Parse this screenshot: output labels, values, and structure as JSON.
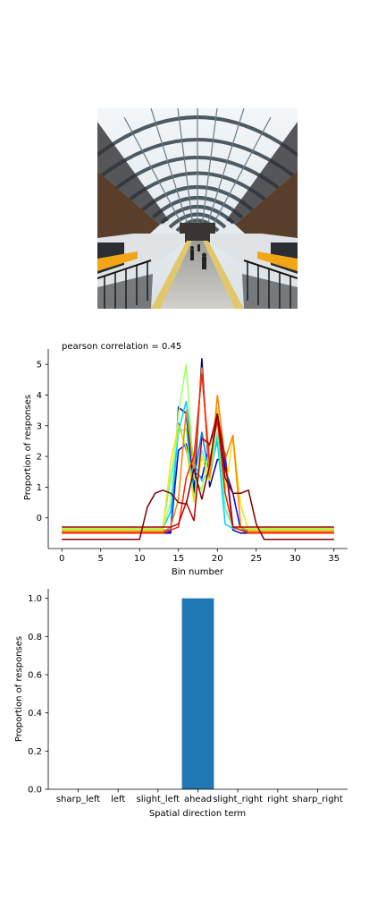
{
  "icons": {
    "photo": "train-station-platform-photo"
  },
  "chart_data": [
    {
      "type": "line",
      "title": "pearson correlation = 0.45",
      "xlabel": "Bin number",
      "ylabel": "Proportion of responses",
      "xlim": [
        -1.75,
        36.75
      ],
      "ylim": [
        -1.0,
        5.5
      ],
      "xticks": [
        "0",
        "5",
        "10",
        "15",
        "20",
        "25",
        "30",
        "35"
      ],
      "yticks": [
        "0",
        "1",
        "2",
        "3",
        "4",
        "5"
      ],
      "x": [
        0,
        1,
        2,
        3,
        4,
        5,
        6,
        7,
        8,
        9,
        10,
        11,
        12,
        13,
        14,
        15,
        16,
        17,
        18,
        19,
        20,
        21,
        22,
        23,
        24,
        25,
        26,
        27,
        28,
        29,
        30,
        31,
        32,
        33,
        34,
        35
      ],
      "series": [
        {
          "color": "#00008b",
          "values": [
            -0.5,
            -0.5,
            -0.5,
            -0.5,
            -0.5,
            -0.5,
            -0.5,
            -0.5,
            -0.5,
            -0.5,
            -0.5,
            -0.5,
            -0.5,
            -0.5,
            -0.5,
            3.6,
            3.4,
            0.8,
            5.2,
            1.0,
            1.9,
            1.9,
            -0.4,
            -0.5,
            -0.5,
            -0.5,
            -0.5,
            -0.5,
            -0.5,
            -0.5,
            -0.5,
            -0.5,
            -0.5,
            -0.5,
            -0.5,
            -0.5
          ]
        },
        {
          "color": "#0000ff",
          "values": [
            -0.45,
            -0.45,
            -0.45,
            -0.45,
            -0.45,
            -0.45,
            -0.45,
            -0.45,
            -0.45,
            -0.45,
            -0.45,
            -0.45,
            -0.45,
            -0.45,
            -0.45,
            2.2,
            2.4,
            1.5,
            1.3,
            2.4,
            3.1,
            1.6,
            0.8,
            -0.4,
            -0.45,
            -0.45,
            -0.45,
            -0.45,
            -0.45,
            -0.45,
            -0.45,
            -0.45,
            -0.45,
            -0.45,
            -0.45,
            -0.45
          ]
        },
        {
          "color": "#0080ff",
          "values": [
            -0.4,
            -0.4,
            -0.4,
            -0.4,
            -0.4,
            -0.4,
            -0.4,
            -0.4,
            -0.4,
            -0.4,
            -0.4,
            -0.4,
            -0.4,
            -0.4,
            -0.4,
            3.1,
            2.2,
            1.2,
            2.8,
            1.3,
            2.7,
            2.1,
            -0.3,
            -0.4,
            -0.4,
            -0.4,
            -0.4,
            -0.4,
            -0.4,
            -0.4,
            -0.4,
            -0.4,
            -0.4,
            -0.4,
            -0.4,
            -0.4
          ]
        },
        {
          "color": "#00d0ff",
          "values": [
            -0.35,
            -0.35,
            -0.35,
            -0.35,
            -0.35,
            -0.35,
            -0.35,
            -0.35,
            -0.35,
            -0.35,
            -0.35,
            -0.35,
            -0.35,
            -0.35,
            0.2,
            2.8,
            3.8,
            1.8,
            1.2,
            1.5,
            2.5,
            -0.2,
            -0.35,
            -0.35,
            -0.35,
            -0.35,
            -0.35,
            -0.35,
            -0.35,
            -0.35,
            -0.35,
            -0.35,
            -0.35,
            -0.35,
            -0.35,
            -0.35
          ]
        },
        {
          "color": "#40ffc0",
          "values": [
            -0.3,
            -0.3,
            -0.3,
            -0.3,
            -0.3,
            -0.3,
            -0.3,
            -0.3,
            -0.3,
            -0.3,
            -0.3,
            -0.3,
            -0.3,
            -0.3,
            1.3,
            2.8,
            2.9,
            0.6,
            2.2,
            1.4,
            2.8,
            0.3,
            -0.3,
            -0.3,
            -0.3,
            -0.3,
            -0.3,
            -0.3,
            -0.3,
            -0.3,
            -0.3,
            -0.3,
            -0.3,
            -0.3,
            -0.3,
            -0.3
          ]
        },
        {
          "color": "#a0ff60",
          "values": [
            -0.35,
            -0.35,
            -0.35,
            -0.35,
            -0.35,
            -0.35,
            -0.35,
            -0.35,
            -0.35,
            -0.35,
            -0.35,
            -0.35,
            -0.35,
            -0.35,
            0.5,
            3.4,
            5.0,
            1.3,
            0.9,
            2.3,
            3.0,
            0.8,
            -0.3,
            -0.35,
            -0.35,
            -0.35,
            -0.35,
            -0.35,
            -0.35,
            -0.35,
            -0.35,
            -0.35,
            -0.35,
            -0.35,
            -0.35,
            -0.35
          ]
        },
        {
          "color": "#ffe000",
          "values": [
            -0.4,
            -0.4,
            -0.4,
            -0.4,
            -0.4,
            -0.4,
            -0.4,
            -0.4,
            -0.4,
            -0.4,
            -0.4,
            -0.4,
            -0.4,
            -0.4,
            1.8,
            3.0,
            2.3,
            0.5,
            2.0,
            1.2,
            3.6,
            0.9,
            2.6,
            0.4,
            -0.4,
            -0.4,
            -0.4,
            -0.4,
            -0.4,
            -0.4,
            -0.4,
            -0.4,
            -0.4,
            -0.4,
            -0.4,
            -0.4
          ]
        },
        {
          "color": "#ff8000",
          "values": [
            -0.45,
            -0.45,
            -0.45,
            -0.45,
            -0.45,
            -0.45,
            -0.45,
            -0.45,
            -0.45,
            -0.45,
            -0.45,
            -0.45,
            -0.45,
            -0.45,
            -0.3,
            0.6,
            3.5,
            1.5,
            4.9,
            1.3,
            4.0,
            1.9,
            2.7,
            -0.3,
            -0.45,
            -0.45,
            -0.45,
            -0.45,
            -0.45,
            -0.45,
            -0.45,
            -0.45,
            -0.45,
            -0.45,
            -0.45,
            -0.45
          ]
        },
        {
          "color": "#ff2000",
          "values": [
            -0.5,
            -0.5,
            -0.5,
            -0.5,
            -0.5,
            -0.5,
            -0.5,
            -0.5,
            -0.5,
            -0.5,
            -0.5,
            -0.5,
            -0.5,
            -0.5,
            -0.4,
            -0.3,
            1.3,
            2.0,
            4.7,
            1.8,
            3.2,
            0.8,
            -0.3,
            -0.4,
            -0.5,
            -0.5,
            -0.5,
            -0.5,
            -0.5,
            -0.5,
            -0.5,
            -0.5,
            -0.5,
            -0.5,
            -0.5,
            -0.5
          ]
        },
        {
          "color": "#c00000",
          "values": [
            -0.3,
            -0.3,
            -0.3,
            -0.3,
            -0.3,
            -0.3,
            -0.3,
            -0.3,
            -0.3,
            -0.3,
            -0.3,
            -0.3,
            -0.3,
            -0.3,
            -0.3,
            -0.2,
            0.5,
            -0.1,
            2.6,
            2.4,
            3.4,
            1.9,
            -0.3,
            -0.3,
            -0.3,
            -0.3,
            -0.3,
            -0.3,
            -0.3,
            -0.3,
            -0.3,
            -0.3,
            -0.3,
            -0.3,
            -0.3,
            -0.3
          ]
        },
        {
          "color": "#800000",
          "values": [
            -0.7,
            -0.7,
            -0.7,
            -0.7,
            -0.7,
            -0.7,
            -0.7,
            -0.7,
            -0.7,
            -0.7,
            -0.7,
            0.35,
            0.8,
            0.9,
            0.8,
            0.5,
            0.45,
            1.6,
            0.6,
            1.7,
            3.4,
            1.3,
            0.8,
            0.8,
            0.9,
            -0.2,
            -0.7,
            -0.7,
            -0.7,
            -0.7,
            -0.7,
            -0.7,
            -0.7,
            -0.7,
            -0.7,
            -0.7
          ]
        }
      ]
    },
    {
      "type": "bar",
      "xlabel": "Spatial direction term",
      "ylabel": "Proportion of responses",
      "categories": [
        "sharp_left",
        "left",
        "slight_left",
        "ahead",
        "slight_right",
        "right",
        "sharp_right"
      ],
      "values": [
        0,
        0,
        0,
        1.0,
        0,
        0,
        0
      ],
      "color": "#1f77b4",
      "ylim": [
        0,
        1.05
      ],
      "yticks": [
        "0.0",
        "0.2",
        "0.4",
        "0.6",
        "0.8",
        "1.0"
      ]
    }
  ]
}
